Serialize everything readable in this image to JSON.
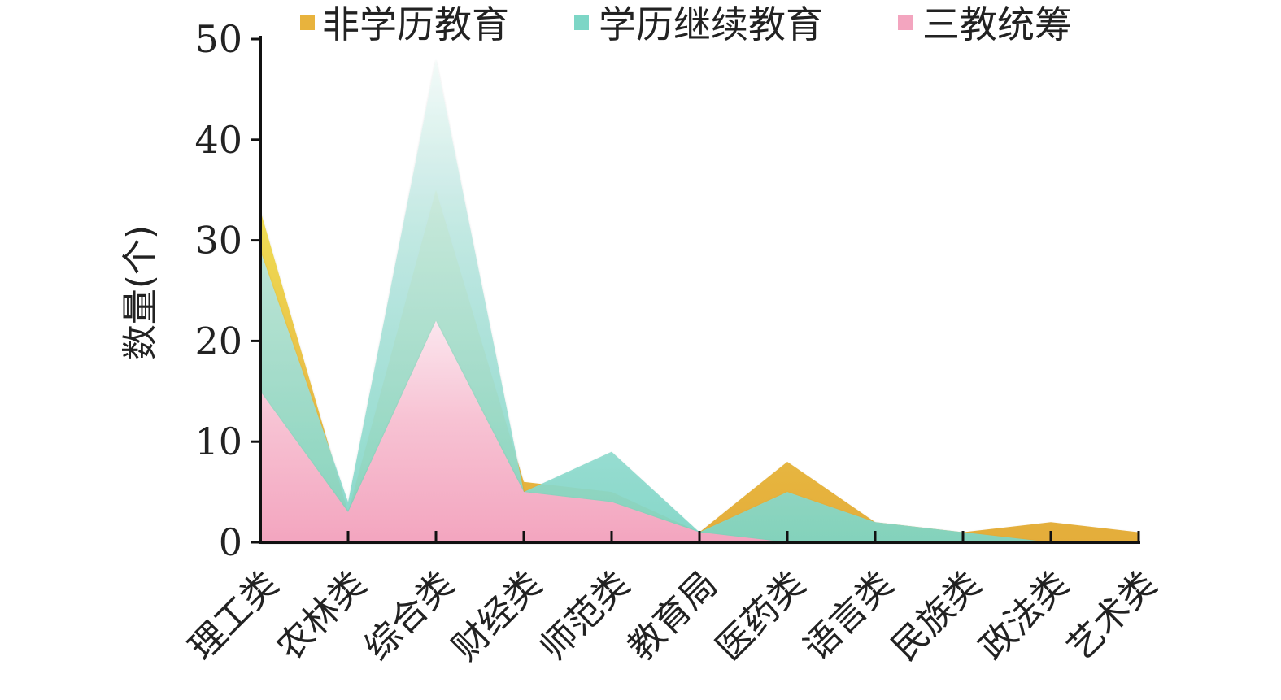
{
  "chart_data": {
    "type": "area",
    "title": "",
    "xlabel": "",
    "ylabel": "数量(个)",
    "ylim": [
      0,
      50
    ],
    "yticks": [
      0,
      10,
      20,
      30,
      40,
      50
    ],
    "grid": false,
    "legend_position": "top",
    "categories": [
      "理工类",
      "农林类",
      "综合类",
      "财经类",
      "师范类",
      "教育局",
      "医药类",
      "语言类",
      "民族类",
      "政法类",
      "艺术类"
    ],
    "series": [
      {
        "name": "非学历教育",
        "values": [
          33,
          3,
          35,
          6,
          5,
          1,
          8,
          2,
          1,
          2,
          1
        ],
        "color": "#E8B33D"
      },
      {
        "name": "学历继续教育",
        "values": [
          29,
          4,
          48,
          5,
          9,
          1,
          5,
          2,
          1,
          0,
          0
        ],
        "color": "#7DD6C6"
      },
      {
        "name": "三教统筹",
        "values": [
          15,
          3,
          22,
          5,
          4,
          1,
          0,
          0,
          0,
          0,
          0
        ],
        "color": "#F3A5BF"
      }
    ]
  }
}
